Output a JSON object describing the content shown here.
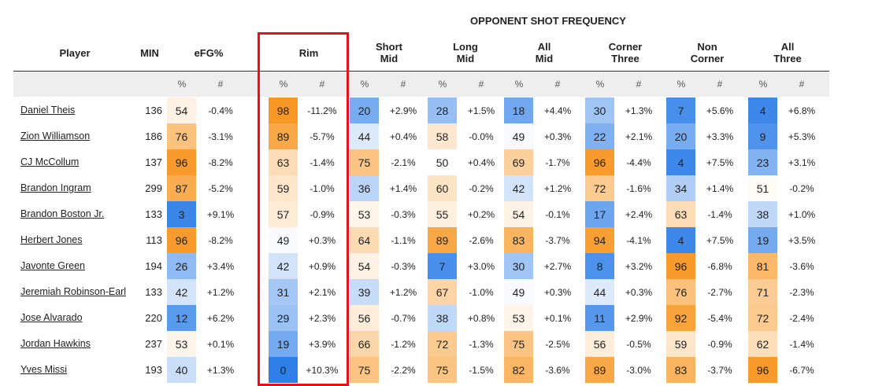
{
  "super_header": "OPPONENT SHOT FREQUENCY",
  "columns": {
    "player": "Player",
    "min": "MIN",
    "efg": "eFG%",
    "rim": "Rim",
    "short_mid": "Short\nMid",
    "long_mid": "Long\nMid",
    "all_mid": "All\nMid",
    "corner_three": "Corner\nThree",
    "non_corner": "Non\nCorner",
    "all_three": "All\nThree"
  },
  "sub_labels": {
    "pct": "%",
    "hash": "#"
  },
  "colors": {
    "high": "#f7941d",
    "low": "#2f7fe8",
    "neutral": "#ffffff",
    "highlight_box": "#e0151b"
  },
  "highlighted_column": "Rim",
  "chart_data": {
    "type": "table",
    "groups": [
      "eFG%",
      "Rim",
      "Short Mid",
      "Long Mid",
      "All Mid",
      "Corner Three",
      "Non Corner",
      "All Three"
    ],
    "rows": [
      {
        "player": "Daniel Theis",
        "min": 136,
        "cells": [
          [
            54,
            "-0.4%"
          ],
          [
            98,
            "-11.2%"
          ],
          [
            20,
            "+2.9%"
          ],
          [
            28,
            "+1.5%"
          ],
          [
            18,
            "+4.4%"
          ],
          [
            30,
            "+1.3%"
          ],
          [
            7,
            "+5.6%"
          ],
          [
            4,
            "+6.8%"
          ]
        ]
      },
      {
        "player": "Zion Williamson",
        "min": 186,
        "cells": [
          [
            76,
            "-3.1%"
          ],
          [
            89,
            "-5.7%"
          ],
          [
            44,
            "+0.4%"
          ],
          [
            58,
            "-0.0%"
          ],
          [
            49,
            "+0.3%"
          ],
          [
            22,
            "+2.1%"
          ],
          [
            20,
            "+3.3%"
          ],
          [
            9,
            "+5.3%"
          ]
        ]
      },
      {
        "player": "CJ McCollum",
        "min": 137,
        "cells": [
          [
            96,
            "-8.2%"
          ],
          [
            63,
            "-1.4%"
          ],
          [
            75,
            "-2.1%"
          ],
          [
            50,
            "+0.4%"
          ],
          [
            69,
            "-1.7%"
          ],
          [
            96,
            "-4.4%"
          ],
          [
            4,
            "+7.5%"
          ],
          [
            23,
            "+3.1%"
          ]
        ]
      },
      {
        "player": "Brandon Ingram",
        "min": 299,
        "cells": [
          [
            87,
            "-5.2%"
          ],
          [
            59,
            "-1.0%"
          ],
          [
            36,
            "+1.4%"
          ],
          [
            60,
            "-0.2%"
          ],
          [
            42,
            "+1.2%"
          ],
          [
            72,
            "-1.6%"
          ],
          [
            34,
            "+1.4%"
          ],
          [
            51,
            "-0.2%"
          ]
        ]
      },
      {
        "player": "Brandon Boston Jr.",
        "min": 133,
        "cells": [
          [
            3,
            "+9.1%"
          ],
          [
            57,
            "-0.9%"
          ],
          [
            53,
            "-0.3%"
          ],
          [
            55,
            "+0.2%"
          ],
          [
            54,
            "-0.1%"
          ],
          [
            17,
            "+2.4%"
          ],
          [
            63,
            "-1.4%"
          ],
          [
            38,
            "+1.0%"
          ]
        ]
      },
      {
        "player": "Herbert Jones",
        "min": 113,
        "cells": [
          [
            96,
            "-8.2%"
          ],
          [
            49,
            "+0.3%"
          ],
          [
            64,
            "-1.1%"
          ],
          [
            89,
            "-2.6%"
          ],
          [
            83,
            "-3.7%"
          ],
          [
            94,
            "-4.1%"
          ],
          [
            4,
            "+7.5%"
          ],
          [
            19,
            "+3.5%"
          ]
        ]
      },
      {
        "player": "Javonte Green",
        "min": 194,
        "cells": [
          [
            26,
            "+3.4%"
          ],
          [
            42,
            "+0.9%"
          ],
          [
            54,
            "-0.3%"
          ],
          [
            7,
            "+3.0%"
          ],
          [
            30,
            "+2.7%"
          ],
          [
            8,
            "+3.2%"
          ],
          [
            96,
            "-6.8%"
          ],
          [
            81,
            "-3.6%"
          ]
        ]
      },
      {
        "player": "Jeremiah Robinson-Earl",
        "min": 133,
        "cells": [
          [
            42,
            "+1.2%"
          ],
          [
            31,
            "+2.1%"
          ],
          [
            39,
            "+1.2%"
          ],
          [
            67,
            "-1.0%"
          ],
          [
            49,
            "+0.3%"
          ],
          [
            44,
            "+0.3%"
          ],
          [
            76,
            "-2.7%"
          ],
          [
            71,
            "-2.3%"
          ]
        ]
      },
      {
        "player": "Jose Alvarado",
        "min": 220,
        "cells": [
          [
            12,
            "+6.2%"
          ],
          [
            29,
            "+2.3%"
          ],
          [
            56,
            "-0.7%"
          ],
          [
            38,
            "+0.8%"
          ],
          [
            53,
            "+0.1%"
          ],
          [
            11,
            "+2.9%"
          ],
          [
            92,
            "-5.4%"
          ],
          [
            72,
            "-2.4%"
          ]
        ]
      },
      {
        "player": "Jordan Hawkins",
        "min": 237,
        "cells": [
          [
            53,
            "+0.1%"
          ],
          [
            19,
            "+3.9%"
          ],
          [
            66,
            "-1.2%"
          ],
          [
            72,
            "-1.3%"
          ],
          [
            75,
            "-2.5%"
          ],
          [
            56,
            "-0.5%"
          ],
          [
            59,
            "-0.9%"
          ],
          [
            62,
            "-1.4%"
          ]
        ]
      },
      {
        "player": "Yves Missi",
        "min": 193,
        "cells": [
          [
            40,
            "+1.3%"
          ],
          [
            0,
            "+10.3%"
          ],
          [
            75,
            "-2.2%"
          ],
          [
            75,
            "-1.5%"
          ],
          [
            82,
            "-3.6%"
          ],
          [
            89,
            "-3.0%"
          ],
          [
            83,
            "-3.7%"
          ],
          [
            96,
            "-6.7%"
          ]
        ]
      }
    ]
  }
}
